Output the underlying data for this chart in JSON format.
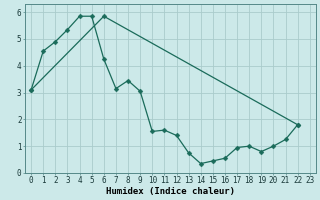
{
  "title": "",
  "xlabel": "Humidex (Indice chaleur)",
  "ylabel": "",
  "bg_color": "#cce9e9",
  "grid_color": "#aacccc",
  "line_color": "#1a6b5a",
  "xlim": [
    -0.5,
    23.5
  ],
  "ylim": [
    0,
    6.3
  ],
  "yticks": [
    0,
    1,
    2,
    3,
    4,
    5,
    6
  ],
  "xtick_vals": [
    0,
    1,
    2,
    3,
    4,
    5,
    6,
    7,
    8,
    9,
    10,
    11,
    12,
    13,
    14,
    15,
    16,
    17,
    18,
    19,
    20,
    21,
    22,
    23
  ],
  "xtick_labels": [
    "0",
    "1",
    "2",
    "3",
    "4",
    "5",
    "6",
    "7",
    "8",
    "9",
    "10",
    "11",
    "12",
    "13",
    "14",
    "15",
    "16",
    "17",
    "18",
    "19",
    "20",
    "21",
    "22",
    "23"
  ],
  "curve1_x": [
    0,
    1,
    2,
    3,
    4,
    5,
    6,
    7,
    8,
    9,
    10,
    11,
    12,
    13,
    14,
    15,
    16,
    17,
    18,
    19,
    20,
    21,
    22
  ],
  "curve1_y": [
    3.1,
    4.55,
    4.9,
    5.35,
    5.85,
    5.85,
    4.25,
    3.15,
    3.45,
    3.05,
    1.55,
    1.6,
    1.4,
    0.75,
    0.35,
    0.45,
    0.55,
    0.95,
    1.0,
    0.8,
    1.0,
    1.25,
    1.8
  ],
  "curve2_x": [
    0,
    6,
    22
  ],
  "curve2_y": [
    3.1,
    5.85,
    1.8
  ],
  "marker": "D",
  "markersize": 2.5,
  "linewidth": 0.9,
  "tick_fontsize": 5.5,
  "xlabel_fontsize": 6.5
}
